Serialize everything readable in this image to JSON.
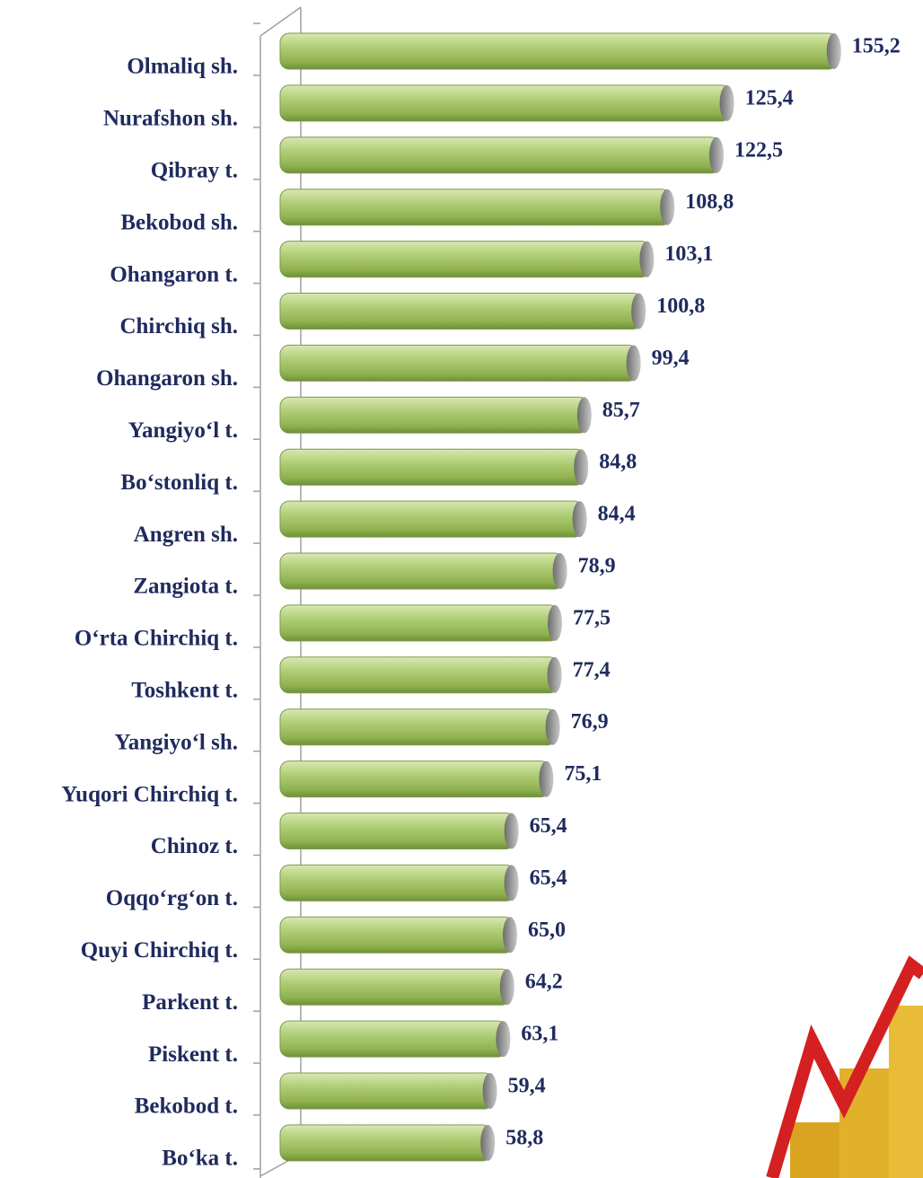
{
  "chart_data": {
    "type": "bar",
    "orientation": "horizontal",
    "color": "#9bbd59",
    "categories": [
      "Olmaliq sh.",
      "Nurafshon sh.",
      "Qibray t.",
      "Bekobod sh.",
      "Ohangaron t.",
      "Chirchiq sh.",
      "Ohangaron sh.",
      "Yangiyo‘l t.",
      "Bo‘stonliq t.",
      "Angren sh.",
      "Zangiota t.",
      "O‘rta Chirchiq t.",
      "Toshkent t.",
      "Yangiyo‘l sh.",
      "Yuqori Chirchiq t.",
      "Chinoz t.",
      "Oqqo‘rg‘on t.",
      "Quyi Chirchiq t.",
      "Parkent t.",
      "Piskent t.",
      "Bekobod t.",
      "Bo‘ka t."
    ],
    "values": [
      155.2,
      125.4,
      122.5,
      108.8,
      103.1,
      100.8,
      99.4,
      85.7,
      84.8,
      84.4,
      78.9,
      77.5,
      77.4,
      76.9,
      75.1,
      65.4,
      65.4,
      65.0,
      64.2,
      63.1,
      59.4,
      58.8
    ],
    "value_labels": [
      "155,2",
      "125,4",
      "122,5",
      "108,8",
      "103,1",
      "100,8",
      "99,4",
      "85,7",
      "84,8",
      "84,4",
      "78,9",
      "77,5",
      "77,4",
      "76,9",
      "75,1",
      "65,4",
      "65,4",
      "65,0",
      "64,2",
      "63,1",
      "59,4",
      "58,8"
    ]
  }
}
